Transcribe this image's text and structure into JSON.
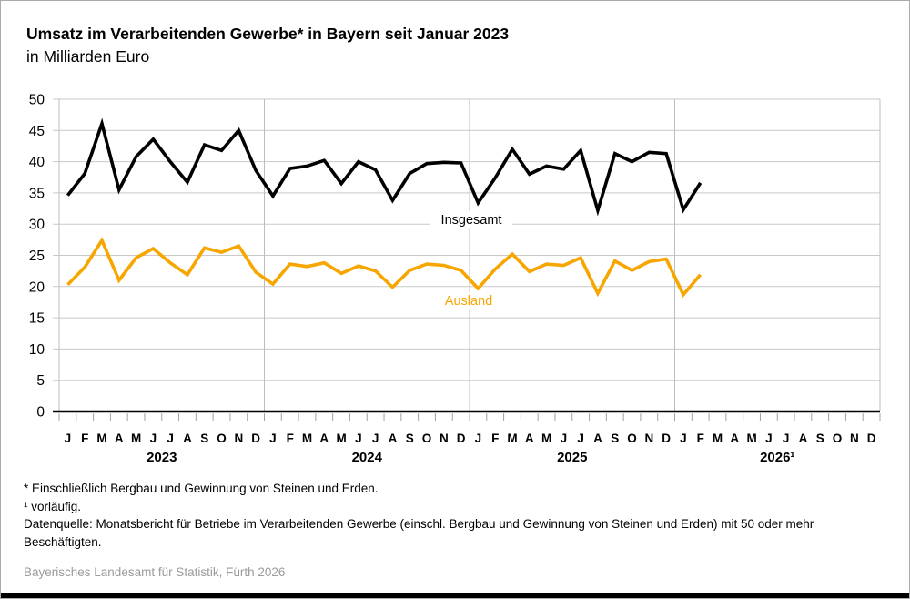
{
  "header": {
    "title": "Umsatz im Verarbeitenden Gewerbe* in Bayern seit Januar 2023",
    "subtitle": "in Milliarden Euro"
  },
  "chart_data": {
    "type": "line",
    "title": "Umsatz im Verarbeitenden Gewerbe* in Bayern seit Januar 2023",
    "ylabel": "in Milliarden Euro",
    "ylim": [
      0,
      50
    ],
    "ytick_step": 5,
    "y_tick_labels": [
      "0",
      "5",
      "10",
      "15",
      "20",
      "25",
      "30",
      "35",
      "40",
      "45",
      "50"
    ],
    "grid": true,
    "legend": "inline-labels",
    "month_letters": [
      "J",
      "F",
      "M",
      "A",
      "M",
      "J",
      "J",
      "A",
      "S",
      "O",
      "N",
      "D"
    ],
    "years": [
      "2023",
      "2024",
      "2025",
      "2026¹"
    ],
    "x": [
      "2023-01",
      "2023-02",
      "2023-03",
      "2023-04",
      "2023-05",
      "2023-06",
      "2023-07",
      "2023-08",
      "2023-09",
      "2023-10",
      "2023-11",
      "2023-12",
      "2024-01",
      "2024-02",
      "2024-03",
      "2024-04",
      "2024-05",
      "2024-06",
      "2024-07",
      "2024-08",
      "2024-09",
      "2024-10",
      "2024-11",
      "2024-12",
      "2025-01",
      "2025-02",
      "2025-03",
      "2025-04",
      "2025-05",
      "2025-06",
      "2025-07",
      "2025-08",
      "2025-09",
      "2025-10",
      "2025-11",
      "2025-12",
      "2026-01",
      "2026-02"
    ],
    "series": [
      {
        "name": "Insgesamt",
        "color": "#000000",
        "values": [
          34.6,
          38.1,
          46.1,
          35.5,
          40.8,
          43.6,
          40.0,
          36.7,
          42.7,
          41.8,
          45.0,
          38.6,
          34.5,
          38.9,
          39.3,
          40.2,
          36.5,
          40.0,
          38.7,
          33.8,
          38.1,
          39.7,
          39.9,
          39.8,
          33.4,
          37.4,
          42.0,
          38.0,
          39.3,
          38.8,
          41.8,
          32.2,
          41.3,
          40.0,
          41.5,
          41.3,
          32.3,
          36.6
        ]
      },
      {
        "name": "Ausland",
        "color": "#F7A600",
        "values": [
          20.3,
          23.1,
          27.4,
          21.0,
          24.6,
          26.1,
          23.8,
          21.9,
          26.2,
          25.5,
          26.5,
          22.3,
          20.4,
          23.6,
          23.2,
          23.8,
          22.1,
          23.3,
          22.5,
          19.9,
          22.6,
          23.6,
          23.4,
          22.6,
          19.7,
          22.8,
          25.2,
          22.4,
          23.6,
          23.4,
          24.6,
          18.9,
          24.1,
          22.6,
          24.0,
          24.4,
          18.7,
          21.9
        ]
      }
    ]
  },
  "footnotes": {
    "line1": "* Einschließlich Bergbau und Gewinnung von Steinen und Erden.",
    "line2": "¹ vorläufig.",
    "line3": "Datenquelle: Monatsbericht für Betriebe im Verarbeitenden Gewerbe (einschl. Bergbau und Gewinnung von Steinen und Erden) mit 50 oder mehr Beschäftigten."
  },
  "source": "Bayerisches Landesamt für Statistik, Fürth 2026"
}
